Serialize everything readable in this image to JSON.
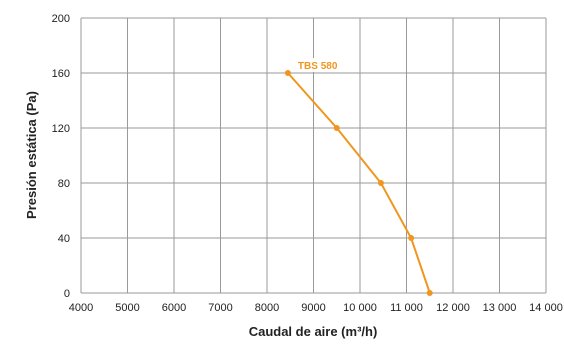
{
  "chart_data": {
    "type": "line",
    "xlabel": "Caudal de aire (m³/h)",
    "ylabel": "Presión estática (Pa)",
    "xlim": [
      4000,
      14000
    ],
    "ylim": [
      0,
      200
    ],
    "x_ticks": [
      4000,
      5000,
      6000,
      7000,
      8000,
      9000,
      10000,
      11000,
      12000,
      13000,
      14000
    ],
    "x_tick_labels": [
      "4000",
      "5000",
      "6000",
      "7000",
      "8000",
      "9000",
      "10 000",
      "11 000",
      "12 000",
      "13 000",
      "14 000"
    ],
    "y_ticks": [
      0,
      40,
      80,
      120,
      160,
      200
    ],
    "y_tick_labels": [
      "0",
      "40",
      "80",
      "120",
      "160",
      "200"
    ],
    "grid": true,
    "series": [
      {
        "name": "TBS 580",
        "color": "#f0961e",
        "x": [
          8450,
          9500,
          10450,
          11100,
          11500
        ],
        "y": [
          160,
          120,
          80,
          40,
          0
        ]
      }
    ]
  }
}
